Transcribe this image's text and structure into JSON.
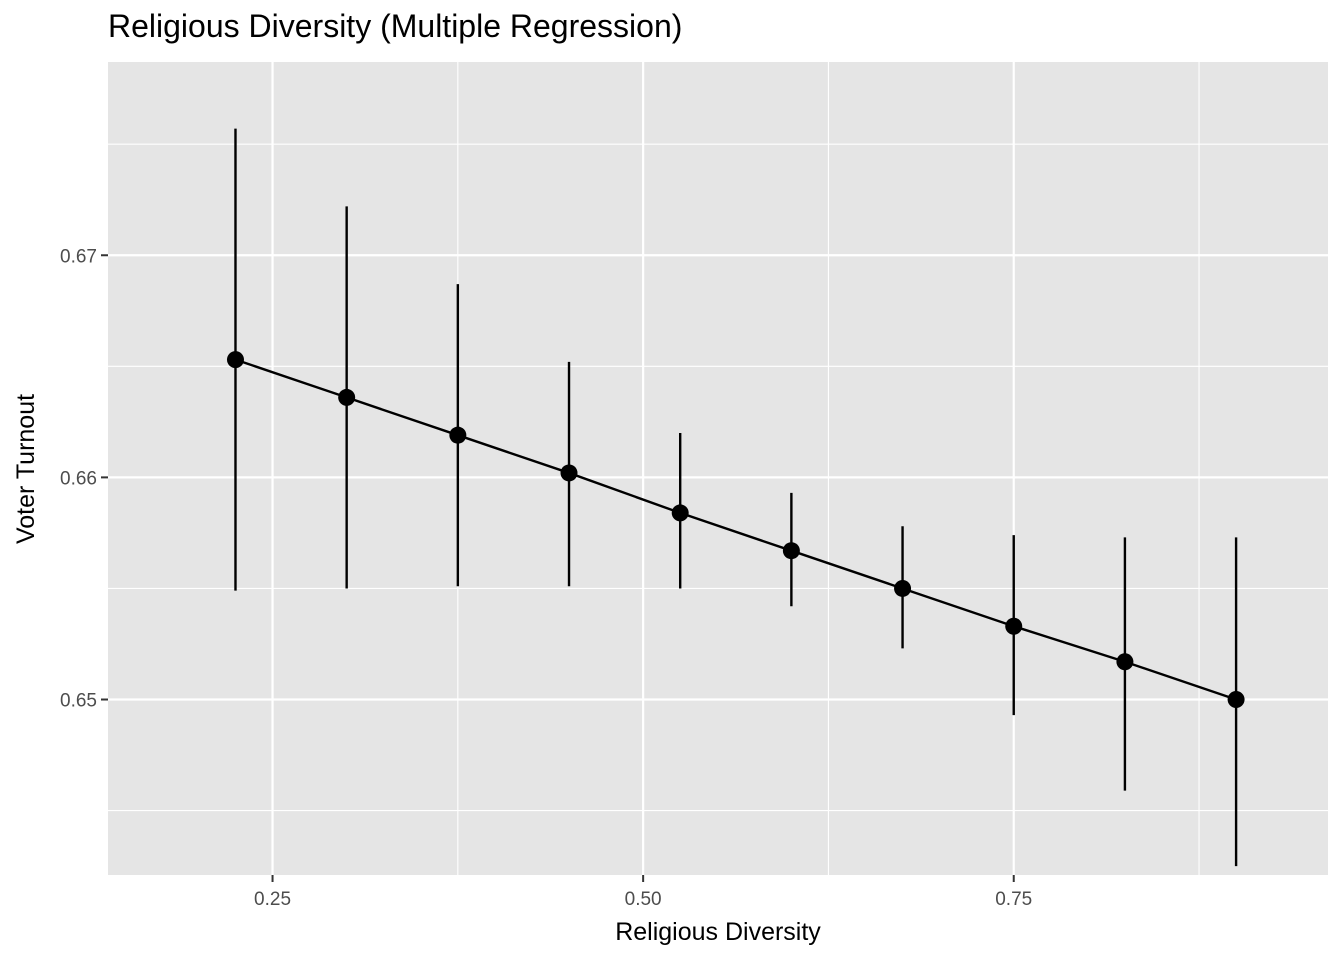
{
  "chart_data": {
    "type": "line",
    "title": "Religious Diversity (Multiple Regression)",
    "xlabel": "Religious Diversity",
    "ylabel": "Voter Turnout",
    "xlim": [
      0.139,
      0.962
    ],
    "ylim": [
      0.6421,
      0.6787
    ],
    "x_ticks": [
      0.25,
      0.5,
      0.75
    ],
    "x_tick_labels": [
      "0.25",
      "0.50",
      "0.75"
    ],
    "x_minor_ticks": [
      0.375,
      0.625,
      0.875
    ],
    "y_ticks": [
      0.65,
      0.66,
      0.67
    ],
    "y_tick_labels": [
      "0.65",
      "0.66",
      "0.67"
    ],
    "y_minor_ticks": [
      0.645,
      0.655,
      0.665,
      0.675
    ],
    "grid": true,
    "background": "#e5e5e5",
    "grid_color": "#ffffff",
    "mark_color": "#000000",
    "series": [
      {
        "x": [
          0.225,
          0.3,
          0.375,
          0.45,
          0.525,
          0.6,
          0.675,
          0.75,
          0.825,
          0.9
        ],
        "y": [
          0.6653,
          0.6636,
          0.6619,
          0.6602,
          0.6584,
          0.6567,
          0.655,
          0.6533,
          0.6517,
          0.65
        ],
        "lower": [
          0.6549,
          0.655,
          0.6551,
          0.6551,
          0.655,
          0.6542,
          0.6523,
          0.6493,
          0.6459,
          0.6425
        ],
        "upper": [
          0.6757,
          0.6722,
          0.6687,
          0.6652,
          0.662,
          0.6593,
          0.6578,
          0.6574,
          0.6573,
          0.6573
        ]
      }
    ]
  }
}
